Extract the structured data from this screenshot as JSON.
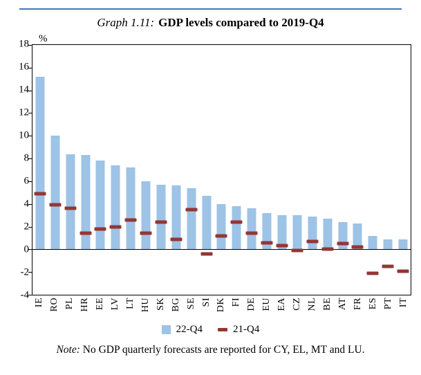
{
  "title": {
    "prefix": "Graph 1.11:",
    "text": "GDP levels compared to 2019-Q4"
  },
  "axis": {
    "percent_label": "%"
  },
  "legend": [
    {
      "label": "22-Q4",
      "swatch": "bar"
    },
    {
      "label": "21-Q4",
      "swatch": "dash"
    }
  ],
  "note": {
    "label": "Note:",
    "text": " No GDP quarterly forecasts are reported for CY, EL, MT and LU."
  },
  "colors": {
    "bar": "#9DC3E6",
    "marker": "#943634",
    "rule": "#4472C4",
    "axis": "#000000"
  },
  "chart_data": {
    "type": "bar",
    "title": "GDP levels compared to 2019-Q4",
    "categories": [
      "IE",
      "RO",
      "PL",
      "HR",
      "EE",
      "LV",
      "LT",
      "HU",
      "SK",
      "BG",
      "SE",
      "SI",
      "DK",
      "FI",
      "DE",
      "EU",
      "EA",
      "CZ",
      "NL",
      "BE",
      "AT",
      "FR",
      "ES",
      "PT",
      "IT"
    ],
    "series": [
      {
        "name": "22-Q4",
        "type": "bar",
        "values": [
          15.2,
          10.0,
          8.4,
          8.3,
          7.8,
          7.4,
          7.2,
          6.0,
          5.7,
          5.6,
          5.4,
          4.7,
          4.0,
          3.8,
          3.6,
          3.2,
          3.0,
          3.0,
          2.9,
          2.7,
          2.4,
          2.3,
          1.2,
          0.9,
          0.9
        ]
      },
      {
        "name": "21-Q4",
        "type": "dash",
        "values": [
          4.9,
          3.9,
          3.6,
          1.4,
          1.8,
          2.0,
          2.6,
          1.4,
          2.4,
          0.9,
          3.5,
          -0.4,
          1.2,
          2.4,
          1.4,
          0.6,
          0.3,
          -0.1,
          0.7,
          0.0,
          0.5,
          0.2,
          -2.1,
          -1.5,
          -1.9
        ]
      }
    ],
    "xlabel": "",
    "ylabel": "%",
    "ylim": [
      -4,
      18
    ],
    "yticks": [
      18,
      16,
      14,
      12,
      10,
      8,
      6,
      4,
      2,
      0,
      -2,
      -4
    ],
    "grid": false,
    "legend_position": "bottom"
  }
}
